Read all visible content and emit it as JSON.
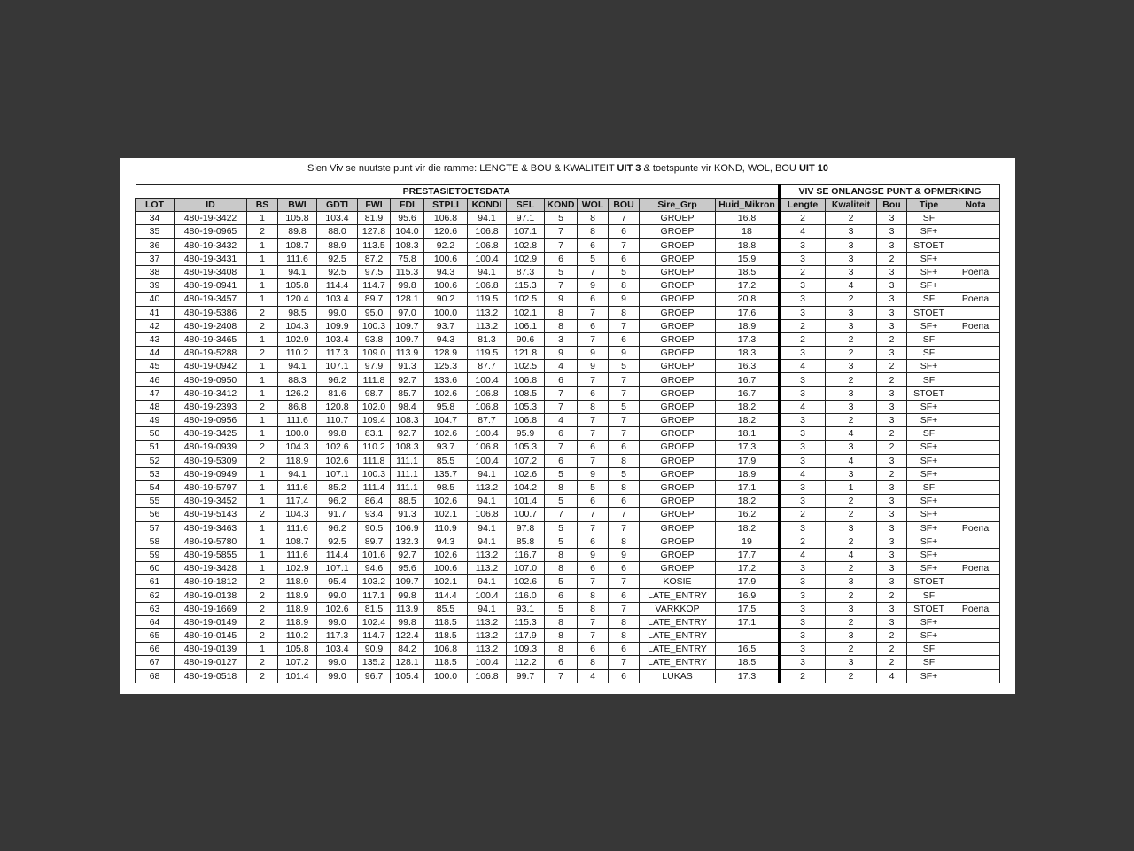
{
  "title": [
    {
      "text": "Sien Viv se nuutste punt vir die ramme: LENGTE & BOU & KWALITEIT ",
      "bold": false
    },
    {
      "text": "UIT 3",
      "bold": true
    },
    {
      "text": " & toetspunte vir KOND, WOL, BOU ",
      "bold": false
    },
    {
      "text": "UIT 10",
      "bold": true
    }
  ],
  "groups": {
    "performance": "PRESTASIETOETSDATA",
    "viv": "VIV SE ONLANGSE PUNT & OPMERKING"
  },
  "columns": [
    "LOT",
    "ID",
    "BS",
    "BWI",
    "GDTI",
    "FWI",
    "FDI",
    "STPLI",
    "KONDI",
    "SEL",
    "KOND",
    "WOL",
    "BOU",
    "Sire_Grp",
    "Huid_Mikron",
    "Lengte",
    "Kwaliteit",
    "Bou",
    "Tipe",
    "Nota"
  ],
  "rows": [
    [
      "34",
      "480-19-3422",
      "1",
      "105.8",
      "103.4",
      "81.9",
      "95.6",
      "106.8",
      "94.1",
      "97.1",
      "5",
      "8",
      "7",
      "GROEP",
      "16.8",
      "2",
      "2",
      "3",
      "SF",
      ""
    ],
    [
      "35",
      "480-19-0965",
      "2",
      "89.8",
      "88.0",
      "127.8",
      "104.0",
      "120.6",
      "106.8",
      "107.1",
      "7",
      "8",
      "6",
      "GROEP",
      "18",
      "4",
      "3",
      "3",
      "SF+",
      ""
    ],
    [
      "36",
      "480-19-3432",
      "1",
      "108.7",
      "88.9",
      "113.5",
      "108.3",
      "92.2",
      "106.8",
      "102.8",
      "7",
      "6",
      "7",
      "GROEP",
      "18.8",
      "3",
      "3",
      "3",
      "STOET",
      ""
    ],
    [
      "37",
      "480-19-3431",
      "1",
      "111.6",
      "92.5",
      "87.2",
      "75.8",
      "100.6",
      "100.4",
      "102.9",
      "6",
      "5",
      "6",
      "GROEP",
      "15.9",
      "3",
      "3",
      "2",
      "SF+",
      ""
    ],
    [
      "38",
      "480-19-3408",
      "1",
      "94.1",
      "92.5",
      "97.5",
      "115.3",
      "94.3",
      "94.1",
      "87.3",
      "5",
      "7",
      "5",
      "GROEP",
      "18.5",
      "2",
      "3",
      "3",
      "SF+",
      "Poena"
    ],
    [
      "39",
      "480-19-0941",
      "1",
      "105.8",
      "114.4",
      "114.7",
      "99.8",
      "100.6",
      "106.8",
      "115.3",
      "7",
      "9",
      "8",
      "GROEP",
      "17.2",
      "3",
      "4",
      "3",
      "SF+",
      ""
    ],
    [
      "40",
      "480-19-3457",
      "1",
      "120.4",
      "103.4",
      "89.7",
      "128.1",
      "90.2",
      "119.5",
      "102.5",
      "9",
      "6",
      "9",
      "GROEP",
      "20.8",
      "3",
      "2",
      "3",
      "SF",
      "Poena"
    ],
    [
      "41",
      "480-19-5386",
      "2",
      "98.5",
      "99.0",
      "95.0",
      "97.0",
      "100.0",
      "113.2",
      "102.1",
      "8",
      "7",
      "8",
      "GROEP",
      "17.6",
      "3",
      "3",
      "3",
      "STOET",
      ""
    ],
    [
      "42",
      "480-19-2408",
      "2",
      "104.3",
      "109.9",
      "100.3",
      "109.7",
      "93.7",
      "113.2",
      "106.1",
      "8",
      "6",
      "7",
      "GROEP",
      "18.9",
      "2",
      "3",
      "3",
      "SF+",
      "Poena"
    ],
    [
      "43",
      "480-19-3465",
      "1",
      "102.9",
      "103.4",
      "93.8",
      "109.7",
      "94.3",
      "81.3",
      "90.6",
      "3",
      "7",
      "6",
      "GROEP",
      "17.3",
      "2",
      "2",
      "2",
      "SF",
      ""
    ],
    [
      "44",
      "480-19-5288",
      "2",
      "110.2",
      "117.3",
      "109.0",
      "113.9",
      "128.9",
      "119.5",
      "121.8",
      "9",
      "9",
      "9",
      "GROEP",
      "18.3",
      "3",
      "2",
      "3",
      "SF",
      ""
    ],
    [
      "45",
      "480-19-0942",
      "1",
      "94.1",
      "107.1",
      "97.9",
      "91.3",
      "125.3",
      "87.7",
      "102.5",
      "4",
      "9",
      "5",
      "GROEP",
      "16.3",
      "4",
      "3",
      "2",
      "SF+",
      ""
    ],
    [
      "46",
      "480-19-0950",
      "1",
      "88.3",
      "96.2",
      "111.8",
      "92.7",
      "133.6",
      "100.4",
      "106.8",
      "6",
      "7",
      "7",
      "GROEP",
      "16.7",
      "3",
      "2",
      "2",
      "SF",
      ""
    ],
    [
      "47",
      "480-19-3412",
      "1",
      "126.2",
      "81.6",
      "98.7",
      "85.7",
      "102.6",
      "106.8",
      "108.5",
      "7",
      "6",
      "7",
      "GROEP",
      "16.7",
      "3",
      "3",
      "3",
      "STOET",
      ""
    ],
    [
      "48",
      "480-19-2393",
      "2",
      "86.8",
      "120.8",
      "102.0",
      "98.4",
      "95.8",
      "106.8",
      "105.3",
      "7",
      "8",
      "5",
      "GROEP",
      "18.2",
      "4",
      "3",
      "3",
      "SF+",
      ""
    ],
    [
      "49",
      "480-19-0956",
      "1",
      "111.6",
      "110.7",
      "109.4",
      "108.3",
      "104.7",
      "87.7",
      "106.8",
      "4",
      "7",
      "7",
      "GROEP",
      "18.2",
      "3",
      "2",
      "3",
      "SF+",
      ""
    ],
    [
      "50",
      "480-19-3425",
      "1",
      "100.0",
      "99.8",
      "83.1",
      "92.7",
      "102.6",
      "100.4",
      "95.9",
      "6",
      "7",
      "7",
      "GROEP",
      "18.1",
      "3",
      "4",
      "2",
      "SF",
      ""
    ],
    [
      "51",
      "480-19-0939",
      "2",
      "104.3",
      "102.6",
      "110.2",
      "108.3",
      "93.7",
      "106.8",
      "105.3",
      "7",
      "6",
      "6",
      "GROEP",
      "17.3",
      "3",
      "3",
      "2",
      "SF+",
      ""
    ],
    [
      "52",
      "480-19-5309",
      "2",
      "118.9",
      "102.6",
      "111.8",
      "111.1",
      "85.5",
      "100.4",
      "107.2",
      "6",
      "7",
      "8",
      "GROEP",
      "17.9",
      "3",
      "4",
      "3",
      "SF+",
      ""
    ],
    [
      "53",
      "480-19-0949",
      "1",
      "94.1",
      "107.1",
      "100.3",
      "111.1",
      "135.7",
      "94.1",
      "102.6",
      "5",
      "9",
      "5",
      "GROEP",
      "18.9",
      "4",
      "3",
      "2",
      "SF+",
      ""
    ],
    [
      "54",
      "480-19-5797",
      "1",
      "111.6",
      "85.2",
      "111.4",
      "111.1",
      "98.5",
      "113.2",
      "104.2",
      "8",
      "5",
      "8",
      "GROEP",
      "17.1",
      "3",
      "1",
      "3",
      "SF",
      ""
    ],
    [
      "55",
      "480-19-3452",
      "1",
      "117.4",
      "96.2",
      "86.4",
      "88.5",
      "102.6",
      "94.1",
      "101.4",
      "5",
      "6",
      "6",
      "GROEP",
      "18.2",
      "3",
      "2",
      "3",
      "SF+",
      ""
    ],
    [
      "56",
      "480-19-5143",
      "2",
      "104.3",
      "91.7",
      "93.4",
      "91.3",
      "102.1",
      "106.8",
      "100.7",
      "7",
      "7",
      "7",
      "GROEP",
      "16.2",
      "2",
      "2",
      "3",
      "SF+",
      ""
    ],
    [
      "57",
      "480-19-3463",
      "1",
      "111.6",
      "96.2",
      "90.5",
      "106.9",
      "110.9",
      "94.1",
      "97.8",
      "5",
      "7",
      "7",
      "GROEP",
      "18.2",
      "3",
      "3",
      "3",
      "SF+",
      "Poena"
    ],
    [
      "58",
      "480-19-5780",
      "1",
      "108.7",
      "92.5",
      "89.7",
      "132.3",
      "94.3",
      "94.1",
      "85.8",
      "5",
      "6",
      "8",
      "GROEP",
      "19",
      "2",
      "2",
      "3",
      "SF+",
      ""
    ],
    [
      "59",
      "480-19-5855",
      "1",
      "111.6",
      "114.4",
      "101.6",
      "92.7",
      "102.6",
      "113.2",
      "116.7",
      "8",
      "9",
      "9",
      "GROEP",
      "17.7",
      "4",
      "4",
      "3",
      "SF+",
      ""
    ],
    [
      "60",
      "480-19-3428",
      "1",
      "102.9",
      "107.1",
      "94.6",
      "95.6",
      "100.6",
      "113.2",
      "107.0",
      "8",
      "6",
      "6",
      "GROEP",
      "17.2",
      "3",
      "2",
      "3",
      "SF+",
      "Poena"
    ],
    [
      "61",
      "480-19-1812",
      "2",
      "118.9",
      "95.4",
      "103.2",
      "109.7",
      "102.1",
      "94.1",
      "102.6",
      "5",
      "7",
      "7",
      "KOSIE",
      "17.9",
      "3",
      "3",
      "3",
      "STOET",
      ""
    ],
    [
      "62",
      "480-19-0138",
      "2",
      "118.9",
      "99.0",
      "117.1",
      "99.8",
      "114.4",
      "100.4",
      "116.0",
      "6",
      "8",
      "6",
      "LATE_ENTRY",
      "16.9",
      "3",
      "2",
      "2",
      "SF",
      ""
    ],
    [
      "63",
      "480-19-1669",
      "2",
      "118.9",
      "102.6",
      "81.5",
      "113.9",
      "85.5",
      "94.1",
      "93.1",
      "5",
      "8",
      "7",
      "VARKKOP",
      "17.5",
      "3",
      "3",
      "3",
      "STOET",
      "Poena"
    ],
    [
      "64",
      "480-19-0149",
      "2",
      "118.9",
      "99.0",
      "102.4",
      "99.8",
      "118.5",
      "113.2",
      "115.3",
      "8",
      "7",
      "8",
      "LATE_ENTRY",
      "17.1",
      "3",
      "2",
      "3",
      "SF+",
      ""
    ],
    [
      "65",
      "480-19-0145",
      "2",
      "110.2",
      "117.3",
      "114.7",
      "122.4",
      "118.5",
      "113.2",
      "117.9",
      "8",
      "7",
      "8",
      "LATE_ENTRY",
      "",
      "3",
      "3",
      "2",
      "SF+",
      ""
    ],
    [
      "66",
      "480-19-0139",
      "1",
      "105.8",
      "103.4",
      "90.9",
      "84.2",
      "106.8",
      "113.2",
      "109.3",
      "8",
      "6",
      "6",
      "LATE_ENTRY",
      "16.5",
      "3",
      "2",
      "2",
      "SF",
      ""
    ],
    [
      "67",
      "480-19-0127",
      "2",
      "107.2",
      "99.0",
      "135.2",
      "128.1",
      "118.5",
      "100.4",
      "112.2",
      "6",
      "8",
      "7",
      "LATE_ENTRY",
      "18.5",
      "3",
      "3",
      "2",
      "SF",
      ""
    ],
    [
      "68",
      "480-19-0518",
      "2",
      "101.4",
      "99.0",
      "96.7",
      "105.4",
      "100.0",
      "106.8",
      "99.7",
      "7",
      "4",
      "6",
      "LUKAS",
      "17.3",
      "2",
      "2",
      "4",
      "SF+",
      ""
    ]
  ]
}
